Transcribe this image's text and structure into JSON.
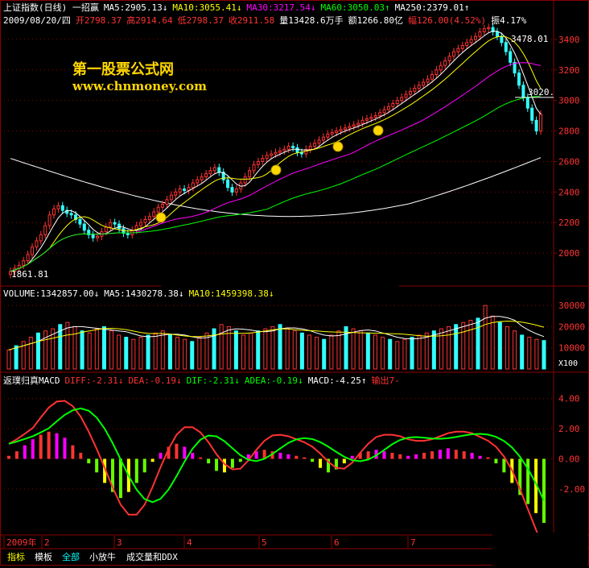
{
  "header": {
    "line1": [
      {
        "text": "上证指数(日线)  一招赢",
        "color": "#ffffff"
      },
      {
        "text": "MA5:2905.13↓",
        "color": "#ffffff"
      },
      {
        "text": "MA10:3055.41↓",
        "color": "#ffff00"
      },
      {
        "text": "MA30:3217.54↓",
        "color": "#ff00ff"
      },
      {
        "text": "MA60:3050.03↑",
        "color": "#00ff00"
      },
      {
        "text": "MA250:2379.01↑",
        "color": "#ffffff"
      }
    ],
    "line2": [
      {
        "text": "2009/08/20/四",
        "color": "#ffffff"
      },
      {
        "text": "开2798.37",
        "color": "#ff3333"
      },
      {
        "text": "高2914.64",
        "color": "#ff3333"
      },
      {
        "text": "低2798.37",
        "color": "#ff3333"
      },
      {
        "text": "收2911.58",
        "color": "#ff3333"
      },
      {
        "text": "量13428.6万手",
        "color": "#ffffff"
      },
      {
        "text": "额1266.80亿",
        "color": "#ffffff"
      },
      {
        "text": "幅126.00(4.52%)",
        "color": "#ff3333"
      },
      {
        "text": "振4.17%",
        "color": "#ffffff"
      }
    ],
    "volume_line": [
      {
        "text": "VOLUME:1342857.00↓",
        "color": "#ffffff"
      },
      {
        "text": "MA5:1430278.38↓",
        "color": "#ffffff"
      },
      {
        "text": "MA10:1459398.38↓",
        "color": "#ffff00"
      }
    ],
    "macd_line": [
      {
        "text": "返璞归真MACD",
        "color": "#ffffff"
      },
      {
        "text": "DIFF:-2.31↓",
        "color": "#ff3333"
      },
      {
        "text": "DEA:-0.19↓",
        "color": "#ff3333"
      },
      {
        "text": "DIF:-2.31↓",
        "color": "#00ff00"
      },
      {
        "text": "ADEA:-0.19↓",
        "color": "#00ff00"
      },
      {
        "text": "MACD:-4.25↑",
        "color": "#ffffff"
      },
      {
        "text": "输出7-",
        "color": "#ff3333"
      }
    ]
  },
  "watermark": {
    "cn": "第一股票公式网",
    "url": "www.chnmoney.com"
  },
  "annotations": {
    "high": "3478.01",
    "low": "1861.81",
    "right_label": "3020."
  },
  "axis": {
    "price_ticks": [
      "3400",
      "3200",
      "3000",
      "2800",
      "2600",
      "2400",
      "2200",
      "2000"
    ],
    "volume_ticks": [
      "30000",
      "20000",
      "10000"
    ],
    "volume_unit": "X100",
    "macd_ticks": [
      "4.00",
      "2.00",
      "0.00",
      "-2.00"
    ],
    "month_labels": [
      "2009年",
      "2",
      "3",
      "4",
      "5",
      "6",
      "7"
    ]
  },
  "tabs": [
    {
      "label": "指标",
      "color": "#ffff00"
    },
    {
      "label": "模板",
      "color": "#ffffff"
    },
    {
      "label": "全部",
      "color": "#00ffff"
    },
    {
      "label": "小放牛",
      "color": "#ffffff"
    },
    {
      "label": "成交量和DDX",
      "color": "#ffffff"
    }
  ],
  "colors": {
    "up": "#ff3333",
    "down": "#33ffff",
    "grid": "#8b0000",
    "ma5": "#ffffff",
    "ma10": "#ffff00",
    "ma30": "#ff00ff",
    "ma60": "#00ff00",
    "ma250": "#ffffff"
  },
  "chart_data": [
    {
      "type": "line",
      "title": "上证指数(日线)",
      "ylim": [
        1800,
        3500
      ],
      "x_count": 150,
      "series": [
        {
          "name": "收",
          "values": [
            1880,
            1900,
            1920,
            1950,
            1990,
            2040,
            2080,
            2120,
            2180,
            2250,
            2290,
            2310,
            2280,
            2260,
            2250,
            2220,
            2190,
            2150,
            2120,
            2100,
            2110,
            2140,
            2170,
            2200,
            2190,
            2160,
            2130,
            2120,
            2150,
            2180,
            2200,
            2220,
            2240,
            2270,
            2300,
            2320,
            2350,
            2380,
            2400,
            2420,
            2410,
            2430,
            2460,
            2480,
            2500,
            2520,
            2540,
            2560,
            2530,
            2480,
            2430,
            2400,
            2420,
            2460,
            2500,
            2540,
            2580,
            2600,
            2620,
            2640,
            2650,
            2660,
            2670,
            2680,
            2700,
            2690,
            2660,
            2650,
            2680,
            2700,
            2720,
            2740,
            2760,
            2780,
            2790,
            2800,
            2810,
            2820,
            2830,
            2840,
            2850,
            2870,
            2880,
            2890,
            2900,
            2920,
            2940,
            2960,
            2980,
            3000,
            3020,
            3040,
            3060,
            3080,
            3100,
            3120,
            3140,
            3170,
            3200,
            3230,
            3260,
            3290,
            3320,
            3340,
            3360,
            3380,
            3400,
            3420,
            3450,
            3470,
            3478,
            3450,
            3420,
            3380,
            3320,
            3250,
            3180,
            3100,
            3020,
            2950,
            2870,
            2800,
            2911
          ]
        },
        {
          "name": "MA5",
          "values": [
            2905.13
          ]
        },
        {
          "name": "MA10",
          "values": [
            3055.41
          ]
        },
        {
          "name": "MA30",
          "values": [
            3217.54
          ]
        },
        {
          "name": "MA60",
          "values": [
            3050.03
          ]
        },
        {
          "name": "MA250",
          "values": [
            2379.01
          ]
        }
      ]
    },
    {
      "type": "bar",
      "title": "VOLUME",
      "ylim": [
        0,
        35000
      ],
      "unit": "X100",
      "values": [
        9000,
        11000,
        13000,
        15000,
        17000,
        18000,
        19000,
        21000,
        22000,
        20000,
        18000,
        17000,
        19000,
        20000,
        18000,
        16000,
        15000,
        14000,
        15000,
        16000,
        17000,
        18000,
        16000,
        15000,
        14000,
        13000,
        15000,
        17000,
        19000,
        21000,
        20000,
        18000,
        16000,
        17000,
        18000,
        19000,
        20000,
        21000,
        19000,
        18000,
        17000,
        16000,
        15000,
        14000,
        16000,
        18000,
        20000,
        19000,
        18000,
        17000,
        16000,
        15000,
        14000,
        13000,
        14000,
        15000,
        16000,
        17000,
        18000,
        19000,
        20000,
        21000,
        22000,
        23000,
        24000,
        30000,
        25000,
        22000,
        20000,
        18000,
        16000,
        15000,
        14000,
        13428
      ]
    },
    {
      "type": "bar",
      "title": "返璞归真MACD",
      "ylim": [
        -5,
        5
      ],
      "values": [
        0.2,
        0.5,
        0.9,
        1.3,
        1.6,
        1.8,
        1.7,
        1.4,
        0.9,
        0.4,
        -0.3,
        -0.9,
        -1.6,
        -2.2,
        -2.6,
        -2.2,
        -1.6,
        -0.9,
        -0.2,
        0.4,
        0.8,
        1.0,
        0.8,
        0.4,
        0.1,
        -0.3,
        -0.8,
        -0.9,
        -0.6,
        -0.2,
        0.3,
        0.5,
        0.6,
        0.5,
        0.4,
        0.3,
        0.2,
        0.1,
        -0.2,
        -0.6,
        -0.9,
        -0.7,
        -0.3,
        0.2,
        0.4,
        0.5,
        0.6,
        0.5,
        0.4,
        0.3,
        0.2,
        0.3,
        0.4,
        0.5,
        0.6,
        0.7,
        0.6,
        0.5,
        0.4,
        0.2,
        0.1,
        -0.3,
        -0.9,
        -1.6,
        -2.4,
        -3.0,
        -3.6,
        -4.25
      ]
    }
  ]
}
